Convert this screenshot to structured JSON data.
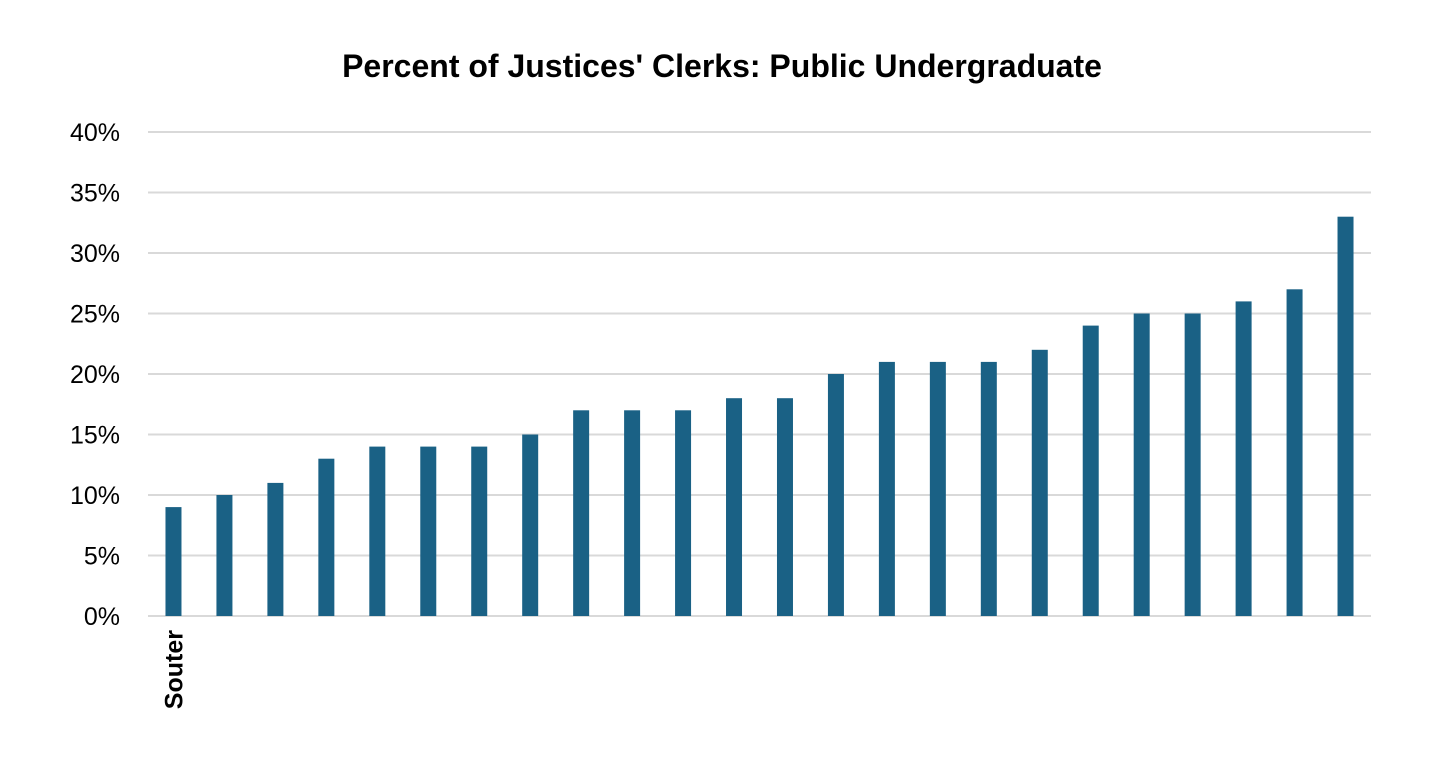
{
  "chart_data": {
    "type": "bar",
    "title": "Percent of Justices' Clerks: Public Undergraduate",
    "xlabel": "",
    "ylabel": "",
    "categories": [
      "Souter",
      "",
      "",
      "",
      "",
      "",
      "",
      "",
      "",
      "",
      "",
      "",
      "",
      "",
      "",
      "",
      "",
      "",
      "",
      "",
      "",
      "",
      "",
      ""
    ],
    "values": [
      9,
      10,
      11,
      13,
      14,
      14,
      14,
      15,
      17,
      17,
      17,
      18,
      18,
      20,
      21,
      21,
      21,
      22,
      24,
      25,
      25,
      26,
      27,
      33
    ],
    "value_unit": "%",
    "ylim": [
      0,
      40
    ],
    "yticks": [
      "0%",
      "5%",
      "10%",
      "15%",
      "20%",
      "25%",
      "30%",
      "35%",
      "40%"
    ],
    "grid": true,
    "legend": "none",
    "colors": {
      "bar": "#1a6185",
      "grid": "#d9d9d9",
      "text": "#000000"
    }
  }
}
